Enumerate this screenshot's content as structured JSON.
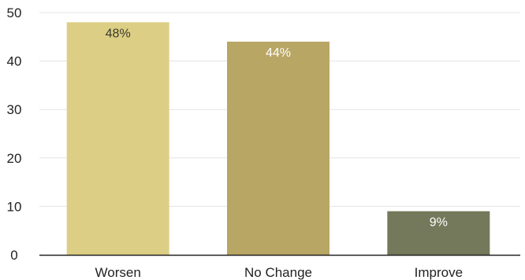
{
  "chart_data": {
    "type": "bar",
    "categories": [
      "Worsen",
      "No Change",
      "Improve"
    ],
    "values": [
      48,
      44,
      9
    ],
    "data_labels": [
      "48%",
      "44%",
      "9%"
    ],
    "title": "",
    "xlabel": "",
    "ylabel": "",
    "ylim": [
      0,
      50
    ],
    "yticks": [
      0,
      10,
      20,
      30,
      40,
      50
    ],
    "grid": true,
    "legend": "none",
    "colors": {
      "bars": [
        "#dccf85",
        "#b8a665",
        "#73795a"
      ],
      "data_labels": [
        "#3a3a2a",
        "#ffffff",
        "#ffffff"
      ],
      "gridline": "#e3e3e3",
      "axis": "#222222"
    }
  }
}
